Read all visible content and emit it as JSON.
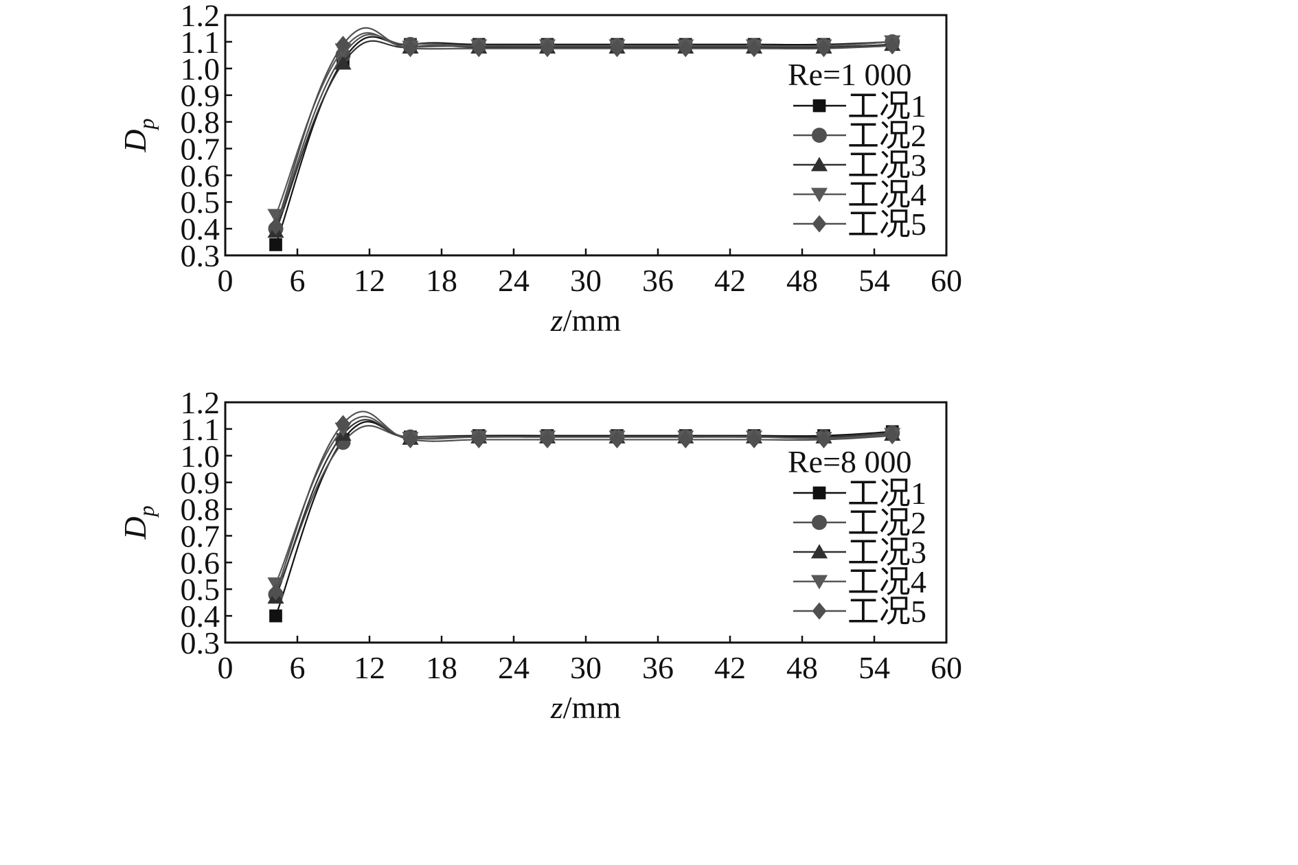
{
  "chart_data": [
    {
      "type": "line",
      "legend_title": "Re=1 000",
      "legend_position": "right",
      "xlabel_italic": "z",
      "xlabel_unit": "/mm",
      "ylabel_main": "D",
      "ylabel_sub": "p",
      "xlim": [
        0,
        60
      ],
      "ylim": [
        0.3,
        1.2
      ],
      "x_ticks": [
        "0",
        "6",
        "12",
        "18",
        "24",
        "30",
        "36",
        "42",
        "48",
        "54",
        "60"
      ],
      "y_ticks": [
        "0.3",
        "0.4",
        "0.5",
        "0.6",
        "0.7",
        "0.8",
        "0.9",
        "1.0",
        "1.1",
        "1.2"
      ],
      "x": [
        4.2,
        9.8,
        15.4,
        21.1,
        26.8,
        32.6,
        38.3,
        44.0,
        49.8,
        55.5
      ],
      "series": [
        {
          "name": "工况1",
          "marker": "square",
          "color": "#111111",
          "values": [
            0.34,
            1.03,
            1.09,
            1.09,
            1.09,
            1.09,
            1.09,
            1.09,
            1.09,
            1.1
          ]
        },
        {
          "name": "工况2",
          "marker": "circle",
          "color": "#505050",
          "values": [
            0.4,
            1.05,
            1.09,
            1.085,
            1.085,
            1.085,
            1.085,
            1.085,
            1.085,
            1.1
          ]
        },
        {
          "name": "工况3",
          "marker": "triangle-up",
          "color": "#303030",
          "values": [
            0.39,
            1.02,
            1.08,
            1.08,
            1.08,
            1.08,
            1.08,
            1.08,
            1.08,
            1.09
          ]
        },
        {
          "name": "工况4",
          "marker": "triangle-down",
          "color": "#585858",
          "values": [
            0.45,
            1.07,
            1.08,
            1.085,
            1.085,
            1.085,
            1.085,
            1.085,
            1.085,
            1.1
          ]
        },
        {
          "name": "工况5",
          "marker": "diamond",
          "color": "#505050",
          "values": [
            0.41,
            1.09,
            1.075,
            1.075,
            1.075,
            1.075,
            1.075,
            1.075,
            1.075,
            1.085
          ]
        }
      ]
    },
    {
      "type": "line",
      "legend_title": "Re=8 000",
      "legend_position": "right",
      "xlabel_italic": "z",
      "xlabel_unit": "/mm",
      "ylabel_main": "D",
      "ylabel_sub": "p",
      "xlim": [
        0,
        60
      ],
      "ylim": [
        0.3,
        1.2
      ],
      "x_ticks": [
        "0",
        "6",
        "12",
        "18",
        "24",
        "30",
        "36",
        "42",
        "48",
        "54",
        "60"
      ],
      "y_ticks": [
        "0.3",
        "0.4",
        "0.5",
        "0.6",
        "0.7",
        "0.8",
        "0.9",
        "1.0",
        "1.1",
        "1.2"
      ],
      "x": [
        4.2,
        9.8,
        15.4,
        21.1,
        26.8,
        32.6,
        38.3,
        44.0,
        49.8,
        55.5
      ],
      "series": [
        {
          "name": "工况1",
          "marker": "square",
          "color": "#111111",
          "values": [
            0.4,
            1.06,
            1.07,
            1.075,
            1.075,
            1.075,
            1.075,
            1.075,
            1.075,
            1.09
          ]
        },
        {
          "name": "工况2",
          "marker": "circle",
          "color": "#505050",
          "values": [
            0.48,
            1.05,
            1.07,
            1.07,
            1.07,
            1.07,
            1.07,
            1.07,
            1.07,
            1.085
          ]
        },
        {
          "name": "工况3",
          "marker": "triangle-up",
          "color": "#303030",
          "values": [
            0.47,
            1.08,
            1.065,
            1.07,
            1.07,
            1.07,
            1.07,
            1.07,
            1.07,
            1.08
          ]
        },
        {
          "name": "工况4",
          "marker": "triangle-down",
          "color": "#585858",
          "values": [
            0.52,
            1.1,
            1.065,
            1.07,
            1.07,
            1.07,
            1.07,
            1.07,
            1.065,
            1.08
          ]
        },
        {
          "name": "工况5",
          "marker": "diamond",
          "color": "#505050",
          "values": [
            0.49,
            1.12,
            1.06,
            1.06,
            1.06,
            1.06,
            1.06,
            1.06,
            1.06,
            1.075
          ]
        }
      ]
    }
  ]
}
